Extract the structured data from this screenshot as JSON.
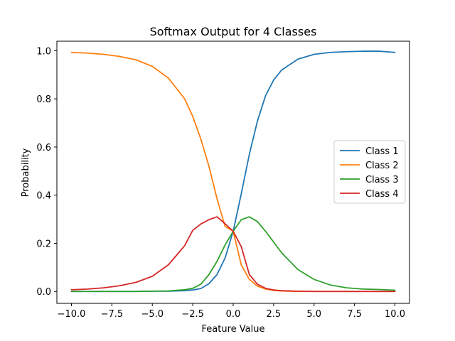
{
  "chart_data": {
    "type": "line",
    "title": "Softmax Output for 4 Classes",
    "xlabel": "Feature Value",
    "ylabel": "Probability",
    "xlim": [
      -10.9,
      10.9
    ],
    "ylim": [
      -0.0495,
      1.0395
    ],
    "xticks": [
      -10.0,
      -7.5,
      -5.0,
      -2.5,
      0.0,
      2.5,
      5.0,
      7.5,
      10.0
    ],
    "xtick_labels": [
      "−10.0",
      "−7.5",
      "−5.0",
      "−2.5",
      "0.0",
      "2.5",
      "5.0",
      "7.5",
      "10.0"
    ],
    "yticks": [
      0.0,
      0.2,
      0.4,
      0.6,
      0.8,
      1.0
    ],
    "ytick_labels": [
      "0.0",
      "0.2",
      "0.4",
      "0.6",
      "0.8",
      "1.0"
    ],
    "grid": false,
    "legend_position": "center-right",
    "series": [
      {
        "name": "Class 1",
        "color": "#1f77b4"
      },
      {
        "name": "Class 2",
        "color": "#ff7f0e"
      },
      {
        "name": "Class 3",
        "color": "#2ca02c"
      },
      {
        "name": "Class 4",
        "color": "#d62728"
      }
    ],
    "x": [
      -10,
      -9,
      -8,
      -7,
      -6,
      -5,
      -4,
      -3,
      -2.5,
      -2,
      -1.5,
      -1,
      -0.5,
      0,
      0.5,
      1,
      1.5,
      2,
      2.5,
      3,
      4,
      5,
      6,
      7,
      8,
      9,
      10
    ],
    "y": [
      [
        0.0,
        0.0,
        0.0,
        0.0,
        0.0,
        0.001,
        0.001,
        0.003,
        0.006,
        0.012,
        0.032,
        0.07,
        0.139,
        0.25,
        0.406,
        0.57,
        0.708,
        0.813,
        0.878,
        0.92,
        0.965,
        0.985,
        0.993,
        0.996,
        0.998,
        0.998,
        0.993
      ],
      [
        0.993,
        0.99,
        0.985,
        0.976,
        0.962,
        0.935,
        0.886,
        0.8,
        0.727,
        0.633,
        0.52,
        0.385,
        0.27,
        0.25,
        0.11,
        0.05,
        0.022,
        0.01,
        0.004,
        0.002,
        0.0,
        0.0,
        0.0,
        0.0,
        0.0,
        0.0,
        0.0
      ],
      [
        0.0,
        0.0,
        0.0,
        0.0,
        0.0,
        0.001,
        0.002,
        0.007,
        0.013,
        0.03,
        0.07,
        0.125,
        0.193,
        0.25,
        0.298,
        0.31,
        0.29,
        0.25,
        0.205,
        0.16,
        0.091,
        0.05,
        0.027,
        0.015,
        0.01,
        0.008,
        0.005
      ],
      [
        0.007,
        0.01,
        0.015,
        0.024,
        0.038,
        0.063,
        0.111,
        0.19,
        0.254,
        0.28,
        0.298,
        0.31,
        0.281,
        0.25,
        0.186,
        0.07,
        0.03,
        0.013,
        0.006,
        0.003,
        0.001,
        0.0,
        0.0,
        0.0,
        0.0,
        0.0,
        0.0
      ]
    ]
  }
}
